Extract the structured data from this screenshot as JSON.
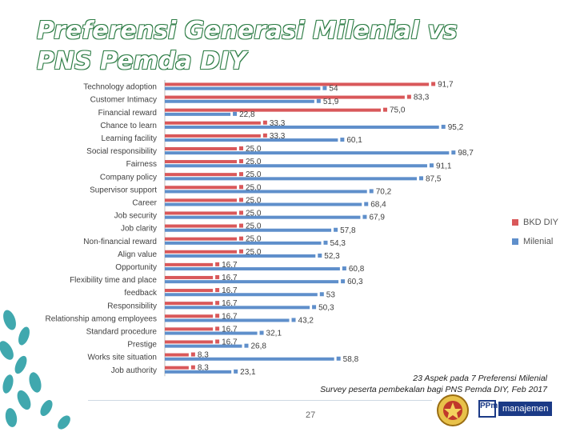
{
  "slide": {
    "title_line1": "Preferensi Generasi Milenial vs",
    "title_line2": "PNS Pemda DIY",
    "caption_line1": "23 Aspek pada 7 Preferensi Milenial",
    "caption_line2": "Survey peserta pembekalan bagi PNS Pemda DIY, Feb 2017",
    "page_number": "27",
    "logo_text": "manajemen",
    "logo_mark": "PPm"
  },
  "colors": {
    "bkd": "#d9585a",
    "milenial": "#5f8fcb",
    "title_outline": "#2e7d46"
  },
  "chart_data": {
    "type": "bar",
    "orientation": "horizontal",
    "categories": [
      "Technology adoption",
      "Customer Intimacy",
      "Financial reward",
      "Chance to learn",
      "Learning facility",
      "Social responsibility",
      "Fairness",
      "Company policy",
      "Supervisor support",
      "Career",
      "Job security",
      "Job clarity",
      "Non-financial reward",
      "Align value",
      "Opportunity",
      "Flexibility time and place",
      "feedback",
      "Responsibility",
      "Relationship among employees",
      "Standard procedure",
      "Prestige",
      "Works site situation",
      "Job authority"
    ],
    "series": [
      {
        "name": "BKD DIY",
        "values": [
          91.7,
          83.3,
          75.0,
          33.3,
          33.3,
          25.0,
          25.0,
          25.0,
          25.0,
          25.0,
          25.0,
          25.0,
          25.0,
          25.0,
          16.7,
          16.7,
          16.7,
          16.7,
          16.7,
          16.7,
          16.7,
          8.3,
          8.3
        ],
        "labels": [
          "91,7",
          "83,3",
          "75,0",
          "33,3",
          "33,3",
          "25,0",
          "25,0",
          "25,0",
          "25,0",
          "25,0",
          "25,0",
          "25,0",
          "25,0",
          "25,0",
          "16,7",
          "16,7",
          "16,7",
          "16,7",
          "16,7",
          "16,7",
          "16,7",
          "8,3",
          "8,3"
        ]
      },
      {
        "name": "Milenial",
        "values": [
          54,
          51.9,
          22.8,
          95.2,
          60.1,
          98.7,
          91.1,
          87.5,
          70.2,
          68.4,
          67.9,
          57.8,
          54.3,
          52.3,
          60.8,
          60.3,
          53,
          50.3,
          43.2,
          32.1,
          26.8,
          58.8,
          23.1
        ],
        "labels": [
          "54",
          "51,9",
          "22,8",
          "95,2",
          "60,1",
          "98,7",
          "91,1",
          "87,5",
          "70,2",
          "68,4",
          "67,9",
          "57,8",
          "54,3",
          "52,3",
          "60,8",
          "60,3",
          "53",
          "50,3",
          "43,2",
          "32,1",
          "26,8",
          "58,8",
          "23,1"
        ]
      }
    ],
    "xlim": [
      0,
      100
    ],
    "grid": false,
    "legend_position": "right"
  }
}
